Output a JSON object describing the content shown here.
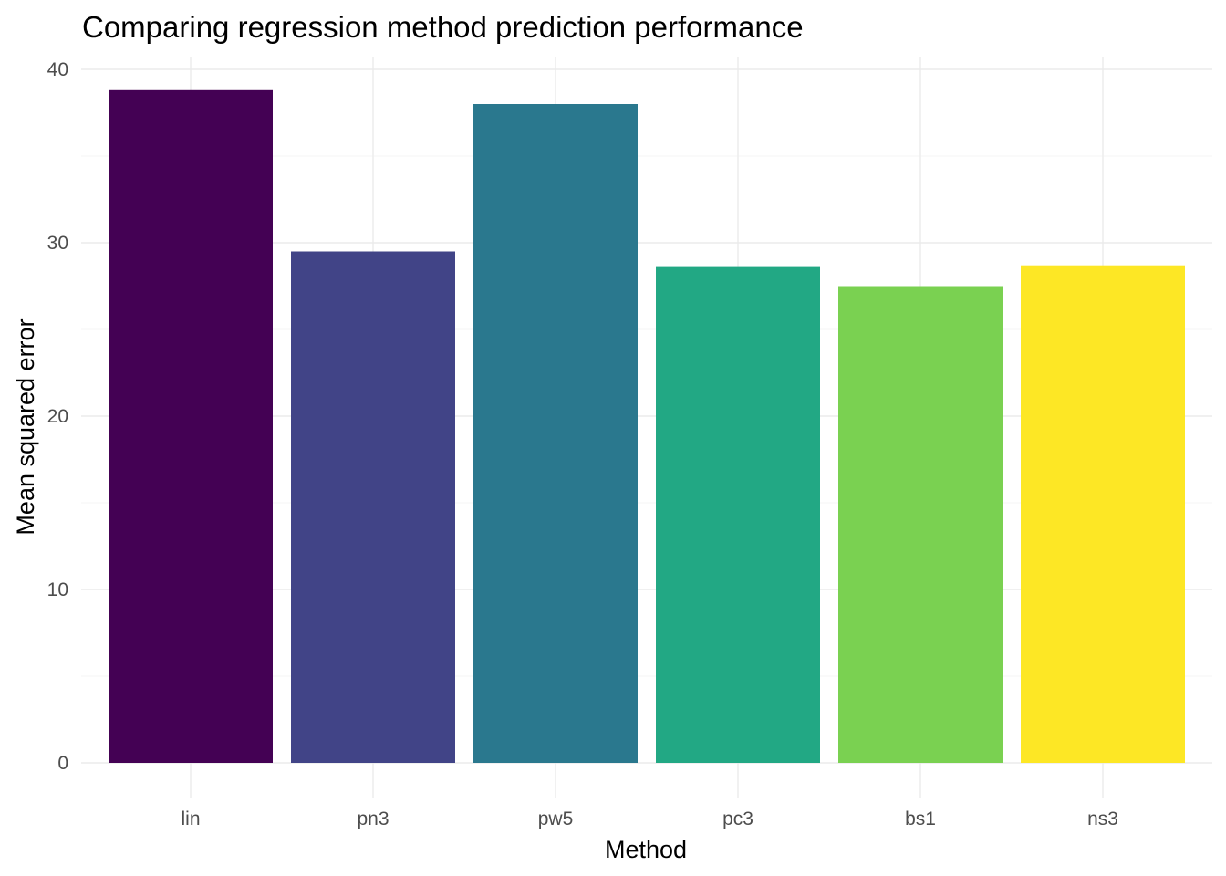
{
  "chart_data": {
    "type": "bar",
    "title": "Comparing regression method prediction performance",
    "xlabel": "Method",
    "ylabel": "Mean squared error",
    "categories": [
      "lin",
      "pn3",
      "pw5",
      "pc3",
      "bs1",
      "ns3"
    ],
    "values": [
      38.8,
      29.5,
      38.0,
      28.6,
      27.5,
      28.7
    ],
    "colors": [
      "#440154",
      "#414487",
      "#2A788E",
      "#22A884",
      "#7AD151",
      "#FDE725"
    ],
    "ylim": [
      0,
      40
    ],
    "yticks": [
      0,
      10,
      20,
      30,
      40
    ],
    "grid": true,
    "legend": "none"
  }
}
